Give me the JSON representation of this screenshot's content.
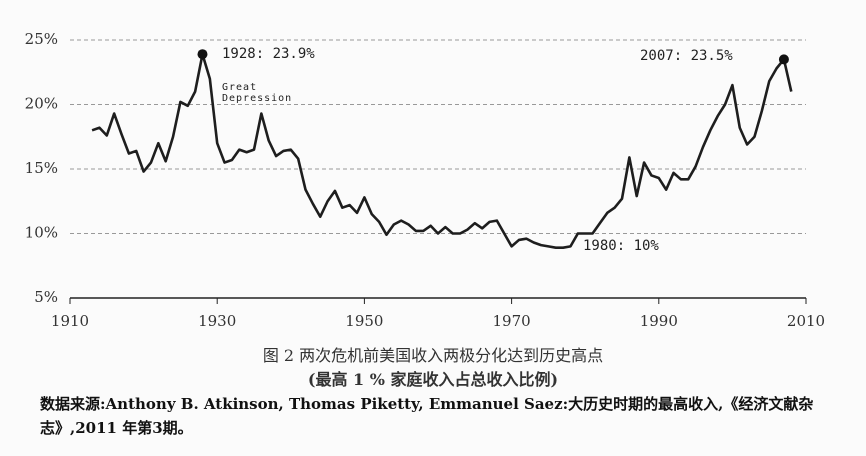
{
  "chart_data": {
    "type": "line",
    "caption": "图 2 两次危机前美国收入两极分化达到历史高点",
    "subtitle": "(最高 1 % 家庭收入占总收入比例)",
    "source": "数据来源:Anthony B. Atkinson, Thomas Piketty, Emmanuel Saez:大历史时期的最高收入,《经济文献杂志》,2011 年第3期。",
    "annotations": [
      "1928: 23.9%",
      "Great Depression",
      "2007: 23.5%",
      "1980: 10%"
    ],
    "x": [
      1913,
      1914,
      1915,
      1916,
      1917,
      1918,
      1919,
      1920,
      1921,
      1922,
      1923,
      1924,
      1925,
      1926,
      1927,
      1928,
      1929,
      1930,
      1931,
      1932,
      1933,
      1934,
      1935,
      1936,
      1937,
      1938,
      1939,
      1940,
      1941,
      1942,
      1943,
      1944,
      1945,
      1946,
      1947,
      1948,
      1949,
      1950,
      1951,
      1952,
      1953,
      1954,
      1955,
      1956,
      1957,
      1958,
      1959,
      1960,
      1961,
      1962,
      1963,
      1964,
      1965,
      1966,
      1967,
      1968,
      1969,
      1970,
      1971,
      1972,
      1973,
      1974,
      1975,
      1976,
      1977,
      1978,
      1979,
      1980,
      1981,
      1982,
      1983,
      1984,
      1985,
      1986,
      1987,
      1988,
      1989,
      1990,
      1991,
      1992,
      1993,
      1994,
      1995,
      1996,
      1997,
      1998,
      1999,
      2000,
      2001,
      2002,
      2003,
      2004,
      2005,
      2006,
      2007,
      2008
    ],
    "series": [
      {
        "name": "top1",
        "color": "#1e1e1e",
        "values": [
          18.0,
          18.2,
          17.6,
          19.3,
          17.7,
          16.2,
          16.4,
          14.8,
          15.5,
          17.0,
          15.6,
          17.5,
          20.2,
          19.9,
          21.0,
          23.9,
          22.0,
          17.0,
          15.5,
          15.7,
          16.5,
          16.3,
          16.5,
          19.3,
          17.2,
          16.0,
          16.4,
          16.5,
          15.8,
          13.4,
          12.3,
          11.3,
          12.5,
          13.3,
          12.0,
          12.2,
          11.6,
          12.8,
          11.5,
          10.9,
          9.9,
          10.7,
          11.0,
          10.7,
          10.2,
          10.2,
          10.6,
          10.0,
          10.5,
          10.0,
          10.0,
          10.3,
          10.8,
          10.4,
          10.9,
          11.0,
          10.0,
          9.0,
          9.5,
          9.6,
          9.3,
          9.1,
          9.0,
          8.9,
          8.9,
          9.0,
          10.0,
          10.0,
          10.0,
          10.8,
          11.6,
          12.0,
          12.7,
          15.9,
          12.9,
          15.5,
          14.5,
          14.3,
          13.4,
          14.7,
          14.2,
          14.2,
          15.2,
          16.7,
          18.0,
          19.1,
          20.0,
          21.5,
          18.2,
          16.9,
          17.5,
          19.5,
          21.8,
          22.8,
          23.5,
          21.0
        ]
      }
    ],
    "xlim": [
      1910,
      2010
    ],
    "xticks": [
      1910,
      1930,
      1950,
      1970,
      1990,
      2010
    ],
    "ylim": [
      5,
      25
    ],
    "yticks": [
      {
        "value": 5,
        "label": "5%"
      },
      {
        "value": 10,
        "label": "10%"
      },
      {
        "value": 15,
        "label": "15%"
      },
      {
        "value": 20,
        "label": "20%"
      },
      {
        "value": 25,
        "label": "25%"
      }
    ],
    "grid": true
  }
}
